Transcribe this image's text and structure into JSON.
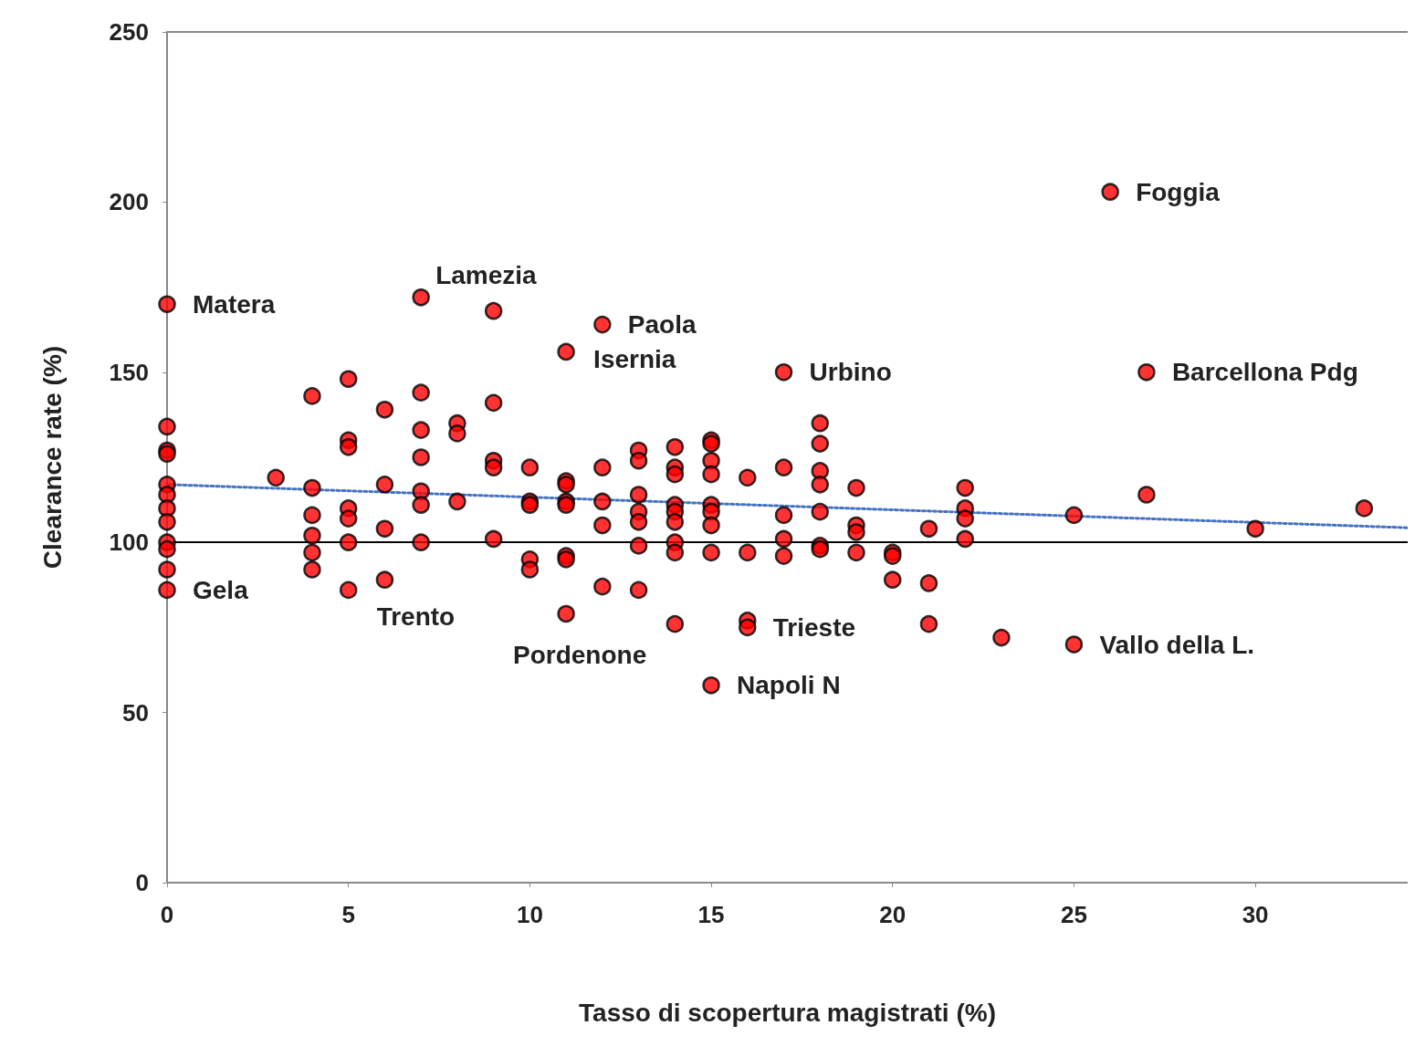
{
  "chart_data": {
    "type": "scatter",
    "xlabel": "Tasso di scopertura magistrati (%)",
    "ylabel": "Clearance rate (%)",
    "xlim": [
      0,
      34.2
    ],
    "xticks": [
      0,
      5,
      10,
      15,
      20,
      25,
      30
    ],
    "ylim": [
      0,
      250
    ],
    "yticks": [
      0,
      50,
      100,
      150,
      200,
      250
    ],
    "grid": false,
    "marker": "circle",
    "series": [
      {
        "color": "#ff0000",
        "x": [
          0,
          0,
          0,
          0,
          0,
          0,
          0,
          0,
          0,
          0,
          0,
          0,
          3,
          4,
          4,
          4,
          4,
          4,
          4,
          5,
          5,
          5,
          5,
          5,
          5,
          5,
          6,
          6,
          6,
          6,
          7,
          7,
          7,
          7,
          7,
          7,
          7,
          8,
          8,
          8,
          9,
          9,
          9,
          9,
          9,
          10,
          10,
          10,
          10,
          10,
          11,
          11,
          11,
          11,
          11,
          11,
          11,
          11,
          12,
          12,
          12,
          12,
          12,
          13,
          13,
          13,
          13,
          13,
          13,
          13,
          14,
          14,
          14,
          14,
          14,
          14,
          14,
          14,
          14,
          15,
          15,
          15,
          15,
          15,
          15,
          15,
          15,
          15,
          16,
          16,
          16,
          16,
          17,
          17,
          17,
          17,
          17,
          18,
          18,
          18,
          18,
          18,
          18,
          18,
          19,
          19,
          19,
          19,
          20,
          20,
          20,
          21,
          21,
          21,
          22,
          22,
          22,
          22,
          23,
          25,
          25,
          26,
          27,
          27,
          30,
          33
        ],
        "values": [
          170,
          134,
          127,
          126,
          117,
          114,
          110,
          106,
          100,
          98,
          92,
          86,
          119,
          143,
          116,
          108,
          102,
          97,
          92,
          148,
          130,
          128,
          110,
          107,
          100,
          86,
          139,
          117,
          104,
          89,
          172,
          144,
          133,
          125,
          115,
          111,
          100,
          135,
          132,
          112,
          168,
          141,
          124,
          122,
          101,
          122,
          112,
          111,
          95,
          92,
          156,
          118,
          117,
          112,
          111,
          96,
          95,
          79,
          164,
          122,
          112,
          105,
          87,
          127,
          124,
          114,
          109,
          106,
          99,
          86,
          128,
          122,
          120,
          111,
          109,
          106,
          100,
          97,
          76,
          130,
          129,
          124,
          120,
          111,
          109,
          105,
          97,
          58,
          119,
          97,
          77,
          75,
          150,
          122,
          108,
          101,
          96,
          135,
          129,
          121,
          117,
          109,
          99,
          98,
          116,
          105,
          103,
          97,
          97,
          96,
          89,
          104,
          88,
          76,
          116,
          110,
          107,
          101,
          72,
          108,
          70,
          203,
          150,
          114,
          104,
          110
        ]
      },
      {
        "type": "line",
        "color": "#4472c4",
        "line_style": "dotted",
        "marker": "none",
        "x": [
          0,
          34.2
        ],
        "values": [
          117,
          104.3
        ]
      }
    ],
    "ref_lines": [
      {
        "axis": "y",
        "value": 100,
        "color": "#000000",
        "line_style": "solid"
      }
    ],
    "annotations": [
      {
        "text": "Matera",
        "x": 0,
        "y": 170
      },
      {
        "text": "Lamezia",
        "x": 7,
        "y": 172
      },
      {
        "text": "Paola",
        "x": 12,
        "y": 164
      },
      {
        "text": "Isernia",
        "x": 11,
        "y": 156
      },
      {
        "text": "Urbino",
        "x": 17,
        "y": 150
      },
      {
        "text": "Foggia",
        "x": 26,
        "y": 203
      },
      {
        "text": "Barcellona Pdg",
        "x": 27,
        "y": 150
      },
      {
        "text": "Gela",
        "x": 0,
        "y": 86
      },
      {
        "text": "Trento",
        "x": 6,
        "y": 89
      },
      {
        "text": "Pordenone",
        "x": 11,
        "y": 79
      },
      {
        "text": "Trieste",
        "x": 16,
        "y": 75
      },
      {
        "text": "Napoli N",
        "x": 15,
        "y": 58
      },
      {
        "text": "Vallo della L.",
        "x": 25,
        "y": 70
      }
    ]
  }
}
